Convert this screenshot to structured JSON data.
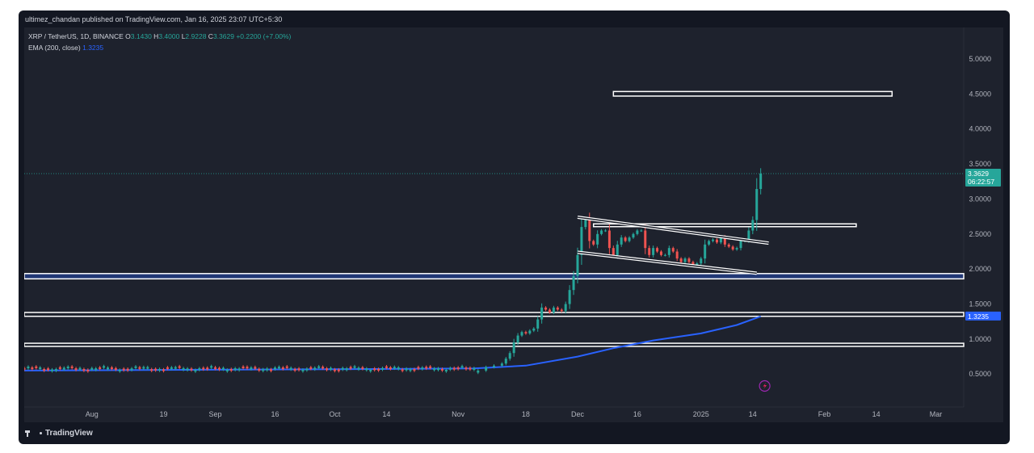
{
  "header": {
    "publish_text": "ultimez_chandan published on TradingView.com, Jan 16, 2025 23:07 UTC+5:30"
  },
  "legend": {
    "symbol": "XRP / TetherUS, 1D, BINANCE",
    "o_label": "O",
    "o_value": "3.1430",
    "h_label": "H",
    "h_value": "3.4000",
    "l_label": "L",
    "l_value": "2.9228",
    "c_label": "C",
    "c_value": "3.3629",
    "change": "+0.2200 (+7.00%)",
    "ema_label": "EMA (200, close)",
    "ema_value": "1.3235"
  },
  "price_badge": {
    "price": "3.3629",
    "countdown": "06:22:57"
  },
  "ema_badge": {
    "value": "1.3235"
  },
  "footer": {
    "logo_text": "TradingView"
  },
  "colors": {
    "background": "#1e222d",
    "frame": "#131722",
    "up": "#26a69a",
    "down": "#ef5350",
    "ema": "#2962ff",
    "zone": "#ffffff",
    "price_badge": "#26a69a",
    "ema_badge": "#2962ff"
  },
  "icons": {
    "lightning": "lightning-icon",
    "logo": "tradingview-logo-icon"
  },
  "chart_data": {
    "type": "candlestick",
    "symbol": "XRP / TetherUS",
    "timeframe": "1D",
    "exchange": "BINANCE",
    "y_ticks": [
      "5.0000",
      "4.5000",
      "4.0000",
      "3.5000",
      "3.0000",
      "2.5000",
      "2.0000",
      "1.5000",
      "1.0000",
      "0.5000"
    ],
    "y_range": [
      0.03,
      5.45
    ],
    "x_range": [
      "2024-07-15",
      "2025-03-08"
    ],
    "x_ticks": [
      {
        "label": "Aug",
        "date": "2024-08-01"
      },
      {
        "label": "19",
        "date": "2024-08-19"
      },
      {
        "label": "Sep",
        "date": "2024-09-01"
      },
      {
        "label": "16",
        "date": "2024-09-16"
      },
      {
        "label": "Oct",
        "date": "2024-10-01"
      },
      {
        "label": "14",
        "date": "2024-10-14"
      },
      {
        "label": "Nov",
        "date": "2024-11-01"
      },
      {
        "label": "18",
        "date": "2024-11-18"
      },
      {
        "label": "Dec",
        "date": "2024-12-01"
      },
      {
        "label": "16",
        "date": "2024-12-16"
      },
      {
        "label": "2025",
        "date": "2025-01-01"
      },
      {
        "label": "14",
        "date": "2025-01-14"
      },
      {
        "label": "Feb",
        "date": "2025-02-01"
      },
      {
        "label": "14",
        "date": "2025-02-14"
      },
      {
        "label": "Mar",
        "date": "2025-03-01"
      }
    ],
    "last_price": 3.3629,
    "ema_200": 1.3235,
    "series": [
      {
        "name": "Open",
        "segment": "range",
        "range": [
          "2024-07-15",
          "2024-11-05"
        ],
        "values": [
          0.55,
          0.6
        ]
      },
      {
        "name": "Close",
        "segment": "range",
        "range": [
          "2024-07-15",
          "2024-11-05"
        ],
        "values": [
          0.55,
          0.6
        ]
      },
      {
        "name": "rally",
        "dates": [
          "2024-11-06",
          "2024-11-08",
          "2024-11-10",
          "2024-11-12",
          "2024-11-13",
          "2024-11-14",
          "2024-11-15",
          "2024-11-16",
          "2024-11-17",
          "2024-11-18",
          "2024-11-19",
          "2024-11-20",
          "2024-11-21",
          "2024-11-22",
          "2024-11-23",
          "2024-11-24",
          "2024-11-25",
          "2024-11-26",
          "2024-11-27",
          "2024-11-28",
          "2024-11-29",
          "2024-11-30"
        ],
        "open": [
          0.52,
          0.55,
          0.6,
          0.62,
          0.65,
          0.72,
          0.8,
          0.95,
          1.05,
          1.1,
          1.08,
          1.12,
          1.15,
          1.28,
          1.45,
          1.42,
          1.38,
          1.45,
          1.42,
          1.4,
          1.5,
          1.7
        ],
        "close": [
          0.55,
          0.6,
          0.62,
          0.65,
          0.72,
          0.8,
          0.95,
          1.05,
          1.1,
          1.08,
          1.12,
          1.15,
          1.28,
          1.45,
          1.42,
          1.38,
          1.45,
          1.42,
          1.4,
          1.5,
          1.7,
          1.9
        ]
      },
      {
        "name": "consolidation",
        "dates": [
          "2024-12-01",
          "2024-12-02",
          "2024-12-03",
          "2024-12-04",
          "2024-12-05",
          "2024-12-06",
          "2024-12-07",
          "2024-12-08",
          "2024-12-09",
          "2024-12-10",
          "2024-12-11",
          "2024-12-12",
          "2024-12-13",
          "2024-12-14",
          "2024-12-15",
          "2024-12-16",
          "2024-12-17",
          "2024-12-18",
          "2024-12-19",
          "2024-12-20",
          "2024-12-21",
          "2024-12-22",
          "2024-12-23",
          "2024-12-24",
          "2024-12-25",
          "2024-12-26",
          "2024-12-27",
          "2024-12-28",
          "2024-12-29",
          "2024-12-30",
          "2024-12-31"
        ],
        "open": [
          1.9,
          2.2,
          2.6,
          2.7,
          2.4,
          2.35,
          2.5,
          2.55,
          2.55,
          2.3,
          2.2,
          2.35,
          2.45,
          2.4,
          2.45,
          2.5,
          2.55,
          2.55,
          2.3,
          2.2,
          2.3,
          2.25,
          2.2,
          2.2,
          2.3,
          2.25,
          2.15,
          2.1,
          2.15,
          2.1,
          2.05
        ],
        "close": [
          2.2,
          2.6,
          2.7,
          2.4,
          2.35,
          2.5,
          2.55,
          2.55,
          2.3,
          2.2,
          2.35,
          2.45,
          2.4,
          2.45,
          2.5,
          2.55,
          2.55,
          2.3,
          2.2,
          2.3,
          2.25,
          2.2,
          2.2,
          2.3,
          2.25,
          2.15,
          2.1,
          2.15,
          2.1,
          2.05,
          2.08
        ]
      },
      {
        "name": "breakout",
        "dates": [
          "2025-01-01",
          "2025-01-02",
          "2025-01-03",
          "2025-01-04",
          "2025-01-05",
          "2025-01-06",
          "2025-01-07",
          "2025-01-08",
          "2025-01-09",
          "2025-01-10",
          "2025-01-11",
          "2025-01-12",
          "2025-01-13",
          "2025-01-14",
          "2025-01-15",
          "2025-01-16"
        ],
        "open": [
          2.08,
          2.15,
          2.35,
          2.4,
          2.42,
          2.38,
          2.45,
          2.35,
          2.32,
          2.28,
          2.3,
          2.4,
          2.42,
          2.55,
          2.7,
          3.143
        ],
        "close": [
          2.15,
          2.35,
          2.4,
          2.42,
          2.38,
          2.45,
          2.35,
          2.32,
          2.28,
          2.3,
          2.4,
          2.42,
          2.55,
          2.7,
          3.143,
          3.3629
        ]
      }
    ]
  }
}
